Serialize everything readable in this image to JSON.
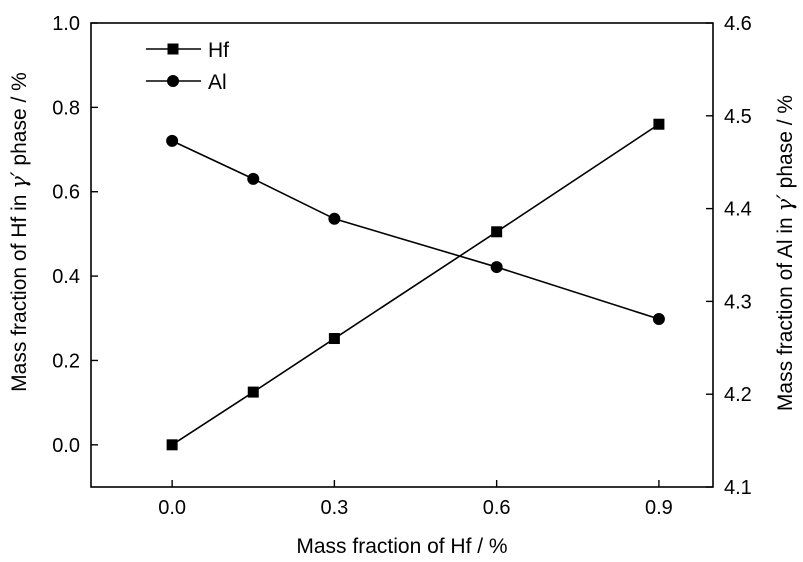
{
  "chart_data": {
    "type": "line",
    "xlabel": "Mass fraction of Hf / %",
    "ylabel_left_prefix": "Mass fraction of Hf in ",
    "ylabel_right_prefix": "Mass fraction of Al in ",
    "ylabel_gamma": "γ′",
    "ylabel_suffix": " phase / %",
    "xlim": [
      -0.15,
      1.0
    ],
    "ylim_left": [
      -0.1,
      1.0
    ],
    "ylim_right": [
      4.1,
      4.6
    ],
    "x_ticks": [
      "0.0",
      "0.3",
      "0.6",
      "0.9"
    ],
    "y_left_ticks": [
      "0.0",
      "0.2",
      "0.4",
      "0.6",
      "0.8",
      "1.0"
    ],
    "y_right_ticks": [
      "4.1",
      "4.2",
      "4.3",
      "4.4",
      "4.5",
      "4.6"
    ],
    "legend_position": "top-left",
    "series": [
      {
        "name": "Hf",
        "marker": "square",
        "axis": "left",
        "x": [
          0.0,
          0.15,
          0.3,
          0.6,
          0.9
        ],
        "y": [
          0.0,
          0.125,
          0.252,
          0.505,
          0.76
        ]
      },
      {
        "name": "Al",
        "marker": "circle",
        "axis": "right",
        "x": [
          0.0,
          0.15,
          0.3,
          0.6,
          0.9
        ],
        "y": [
          4.473,
          4.432,
          4.389,
          4.337,
          4.281
        ]
      }
    ]
  }
}
